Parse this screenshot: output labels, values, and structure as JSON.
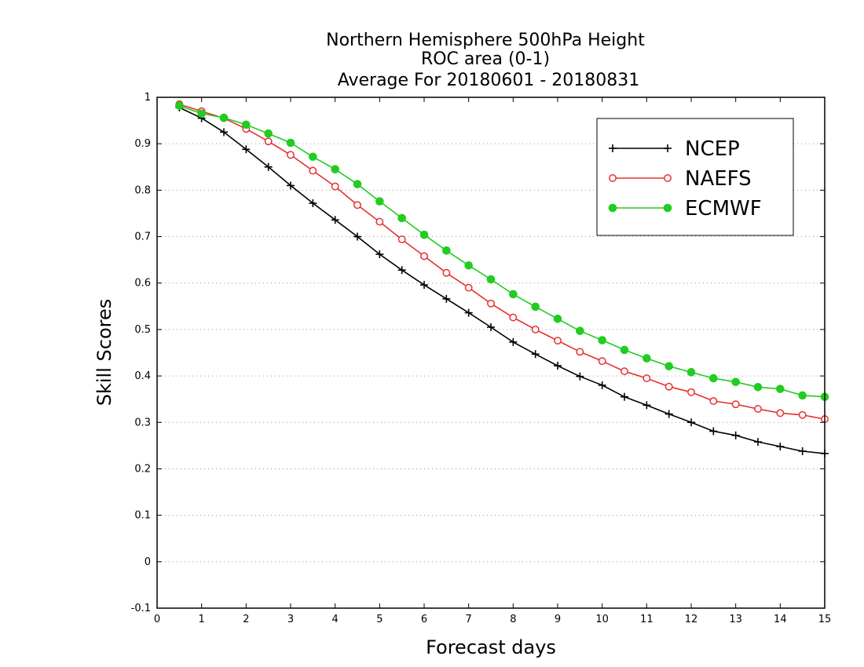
{
  "chart_data": {
    "type": "line",
    "title_lines": [
      "Northern Hemisphere 500hPa Height",
      "ROC area (0-1)",
      "Average For 20180601 - 20180831"
    ],
    "xlabel": "Forecast days",
    "ylabel": "Skill Scores",
    "xlim": [
      0,
      15
    ],
    "ylim": [
      -0.1,
      1
    ],
    "xticks": [
      "0",
      "1",
      "2",
      "3",
      "4",
      "5",
      "6",
      "7",
      "8",
      "9",
      "10",
      "11",
      "12",
      "13",
      "14",
      "15"
    ],
    "yticks": [
      "-0.1",
      "0",
      "0.1",
      "0.2",
      "0.3",
      "0.4",
      "0.5",
      "0.6",
      "0.7",
      "0.8",
      "0.9",
      "1"
    ],
    "grid": "horizontal-dotted",
    "legend_position": "top-right",
    "x": [
      0.5,
      1,
      1.5,
      2,
      2.5,
      3,
      3.5,
      4,
      4.5,
      5,
      5.5,
      6,
      6.5,
      7,
      7.5,
      8,
      8.5,
      9,
      9.5,
      10,
      10.5,
      11,
      11.5,
      12,
      12.5,
      13,
      13.5,
      14,
      14.5,
      15
    ],
    "series": [
      {
        "name": "NCEP",
        "color": "#000000",
        "marker": "plus",
        "values": [
          0.978,
          0.955,
          0.925,
          0.888,
          0.85,
          0.81,
          0.772,
          0.736,
          0.7,
          0.662,
          0.628,
          0.596,
          0.566,
          0.536,
          0.505,
          0.473,
          0.447,
          0.422,
          0.399,
          0.38,
          0.355,
          0.337,
          0.318,
          0.3,
          0.281,
          0.272,
          0.258,
          0.248,
          0.238,
          0.233
        ]
      },
      {
        "name": "NAEFS",
        "color": "#e83030",
        "marker": "open-circle",
        "values": [
          0.985,
          0.97,
          0.955,
          0.932,
          0.905,
          0.876,
          0.842,
          0.808,
          0.768,
          0.732,
          0.694,
          0.658,
          0.622,
          0.59,
          0.556,
          0.526,
          0.5,
          0.476,
          0.452,
          0.432,
          0.41,
          0.395,
          0.377,
          0.365,
          0.346,
          0.339,
          0.329,
          0.32,
          0.316,
          0.307
        ]
      },
      {
        "name": "ECMWF",
        "color": "#22cc22",
        "marker": "filled-circle",
        "values": [
          0.982,
          0.965,
          0.956,
          0.941,
          0.922,
          0.902,
          0.872,
          0.845,
          0.813,
          0.776,
          0.74,
          0.704,
          0.67,
          0.638,
          0.608,
          0.576,
          0.549,
          0.523,
          0.497,
          0.477,
          0.456,
          0.438,
          0.421,
          0.408,
          0.395,
          0.387,
          0.376,
          0.372,
          0.358,
          0.355
        ]
      }
    ]
  }
}
